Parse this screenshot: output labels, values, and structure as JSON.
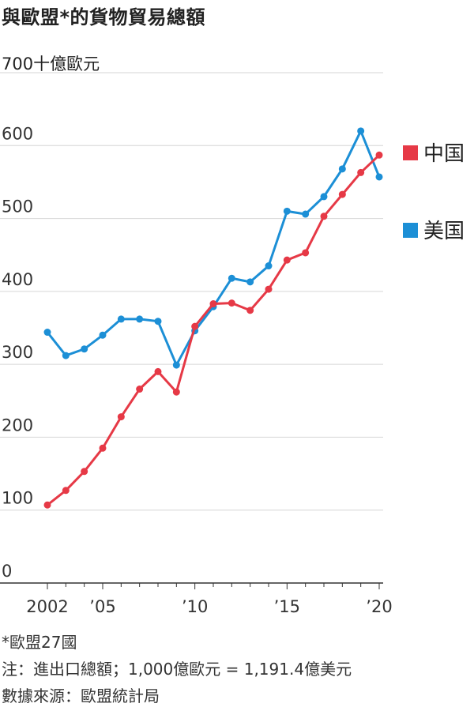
{
  "chart_data": {
    "type": "line",
    "title": "與歐盟*的貨物貿易總額",
    "unit_label": "700十億歐元",
    "ylim": [
      0,
      700
    ],
    "yticks": [
      "0",
      "100",
      "200",
      "300",
      "400",
      "500",
      "600"
    ],
    "xlim": [
      2002,
      2020
    ],
    "xticks": [
      {
        "value": 2002,
        "label": "2002"
      },
      {
        "value": 2005,
        "label": "’05"
      },
      {
        "value": 2010,
        "label": "’10"
      },
      {
        "value": 2015,
        "label": "’15"
      },
      {
        "value": 2020,
        "label": "’20"
      }
    ],
    "x": [
      2002,
      2003,
      2004,
      2005,
      2006,
      2007,
      2008,
      2009,
      2010,
      2011,
      2012,
      2013,
      2014,
      2015,
      2016,
      2017,
      2018,
      2019,
      2020
    ],
    "grid": true,
    "legend_position": "right",
    "series": [
      {
        "name": "中国",
        "color": "#e63946",
        "values": [
          107,
          127,
          153,
          185,
          228,
          266,
          290,
          262,
          352,
          383,
          384,
          374,
          403,
          443,
          453,
          503,
          533,
          563,
          587
        ]
      },
      {
        "name": "美国",
        "color": "#1c8fd6",
        "values": [
          344,
          312,
          321,
          340,
          362,
          362,
          359,
          299,
          346,
          379,
          418,
          413,
          435,
          510,
          506,
          530,
          568,
          620,
          557
        ]
      }
    ]
  },
  "notes": {
    "line1": "*歐盟27國",
    "line2": "注：進出口總額；1,000億歐元 = 1,191.4億美元",
    "line3": "數據來源：歐盟統計局"
  }
}
